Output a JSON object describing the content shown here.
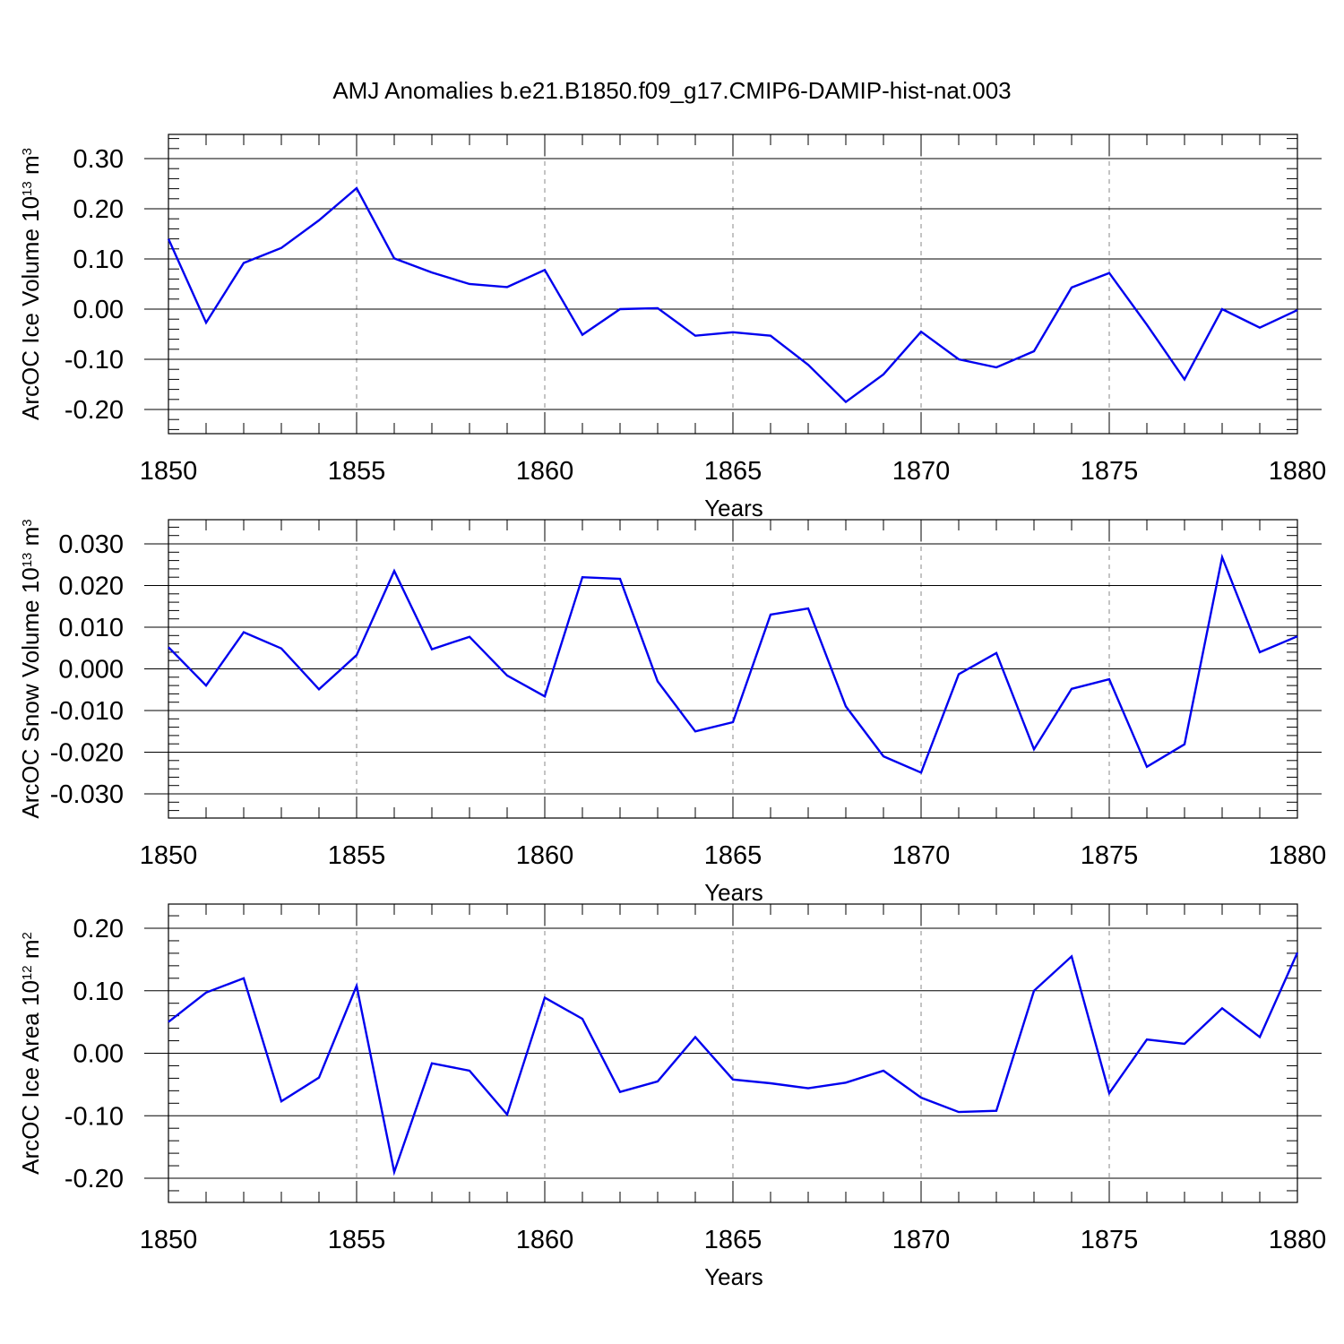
{
  "title": "AMJ Anomalies b.e21.B1850.f09_g17.CMIP6-DAMIP-hist-nat.003",
  "colors": {
    "line": "#0000ee",
    "axis": "#000000",
    "gridline": "#888888"
  },
  "chart_data": [
    {
      "type": "line",
      "ylabel": {
        "prefix": "ArcOC Ice Volume 10",
        "exponent": "13",
        "unit": " m",
        "unit_exponent": "3"
      },
      "xlabel": "Years",
      "xlim": [
        1850,
        1880
      ],
      "ylim": [
        -0.2,
        0.3
      ],
      "yticks": [
        "0.30",
        "0.20",
        "0.10",
        "0.00",
        "-0.10",
        "-0.20"
      ],
      "ytick_values": [
        0.3,
        0.2,
        0.1,
        0.0,
        -0.1,
        -0.2
      ],
      "xticks": [
        "1850",
        "1855",
        "1860",
        "1865",
        "1870",
        "1875",
        "1880"
      ],
      "xtick_values": [
        1850,
        1855,
        1860,
        1865,
        1870,
        1875,
        1880
      ],
      "x": [
        1850,
        1851,
        1852,
        1853,
        1854,
        1855,
        1856,
        1857,
        1858,
        1859,
        1860,
        1861,
        1862,
        1863,
        1864,
        1865,
        1866,
        1867,
        1868,
        1869,
        1870,
        1871,
        1872,
        1873,
        1874,
        1875,
        1876,
        1877,
        1878,
        1879,
        1880
      ],
      "y": [
        0.14,
        -0.027,
        0.092,
        0.122,
        0.177,
        0.241,
        0.101,
        0.073,
        0.05,
        0.044,
        0.078,
        -0.051,
        0.0,
        0.002,
        -0.053,
        -0.046,
        -0.053,
        -0.111,
        -0.185,
        -0.13,
        -0.045,
        -0.1,
        -0.116,
        -0.084,
        0.043,
        0.072,
        -0.031,
        -0.14,
        0.0,
        -0.037,
        -0.002
      ],
      "grid": "vertical dashed lines at major x ticks"
    },
    {
      "type": "line",
      "ylabel": {
        "prefix": "ArcOC Snow Volume 10",
        "exponent": "13",
        "unit": " m",
        "unit_exponent": "3"
      },
      "xlabel": "Years",
      "xlim": [
        1850,
        1880
      ],
      "ylim": [
        -0.03,
        0.03
      ],
      "yticks": [
        "0.030",
        "0.020",
        "0.010",
        "0.000",
        "-0.010",
        "-0.020",
        "-0.030"
      ],
      "ytick_values": [
        0.03,
        0.02,
        0.01,
        0.0,
        -0.01,
        -0.02,
        -0.03
      ],
      "xticks": [
        "1850",
        "1855",
        "1860",
        "1865",
        "1870",
        "1875",
        "1880"
      ],
      "xtick_values": [
        1850,
        1855,
        1860,
        1865,
        1870,
        1875,
        1880
      ],
      "x": [
        1850,
        1851,
        1852,
        1853,
        1854,
        1855,
        1856,
        1857,
        1858,
        1859,
        1860,
        1861,
        1862,
        1863,
        1864,
        1865,
        1866,
        1867,
        1868,
        1869,
        1870,
        1871,
        1872,
        1873,
        1874,
        1875,
        1876,
        1877,
        1878,
        1879,
        1880
      ],
      "y": [
        0.0052,
        -0.004,
        0.0088,
        0.0049,
        -0.0049,
        0.0033,
        0.0235,
        0.0047,
        0.0077,
        -0.0016,
        -0.0066,
        0.022,
        0.0216,
        -0.003,
        -0.015,
        -0.0128,
        0.013,
        0.0145,
        -0.009,
        -0.021,
        -0.0249,
        -0.0013,
        0.0038,
        -0.0193,
        -0.0048,
        -0.0025,
        -0.0235,
        -0.0181,
        0.0268,
        0.004,
        0.0078
      ],
      "grid": "vertical dashed lines at major x ticks"
    },
    {
      "type": "line",
      "ylabel": {
        "prefix": "ArcOC Ice Area 10",
        "exponent": "12",
        "unit": " m",
        "unit_exponent": "2"
      },
      "xlabel": "Years",
      "xlim": [
        1850,
        1880
      ],
      "ylim": [
        -0.2,
        0.2
      ],
      "yticks": [
        "0.20",
        "0.10",
        "0.00",
        "-0.10",
        "-0.20"
      ],
      "ytick_values": [
        0.2,
        0.1,
        0.0,
        -0.1,
        -0.2
      ],
      "xticks": [
        "1850",
        "1855",
        "1860",
        "1865",
        "1870",
        "1875",
        "1880"
      ],
      "xtick_values": [
        1850,
        1855,
        1860,
        1865,
        1870,
        1875,
        1880
      ],
      "x": [
        1850,
        1851,
        1852,
        1853,
        1854,
        1855,
        1856,
        1857,
        1858,
        1859,
        1860,
        1861,
        1862,
        1863,
        1864,
        1865,
        1866,
        1867,
        1868,
        1869,
        1870,
        1871,
        1872,
        1873,
        1874,
        1875,
        1876,
        1877,
        1878,
        1879,
        1880
      ],
      "y": [
        0.05,
        0.097,
        0.12,
        -0.077,
        -0.039,
        0.108,
        -0.19,
        -0.016,
        -0.028,
        -0.098,
        0.089,
        0.055,
        -0.062,
        -0.045,
        0.026,
        -0.042,
        -0.048,
        -0.056,
        -0.047,
        -0.028,
        -0.071,
        -0.094,
        -0.092,
        0.1,
        0.155,
        -0.064,
        0.022,
        0.015,
        0.072,
        0.026,
        0.161
      ],
      "grid": "vertical dashed lines at major x ticks"
    }
  ]
}
